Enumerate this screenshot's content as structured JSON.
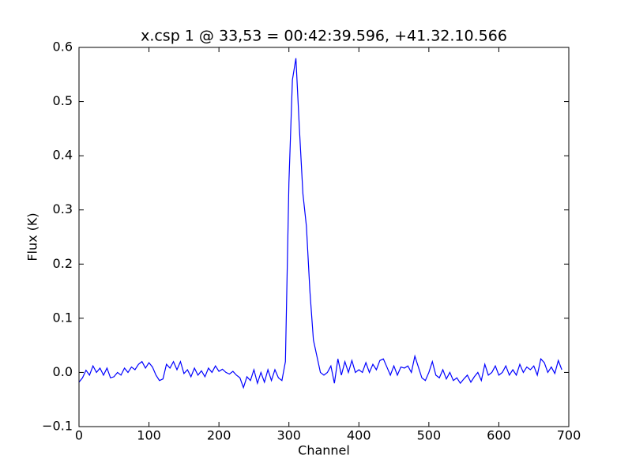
{
  "chart_data": {
    "type": "line",
    "title": "x.csp 1 @ 33,53 = 00:42:39.596, +41.32.10.566",
    "x_label": "Channel",
    "y_label": "Flux (K)",
    "xlim": [
      0,
      700
    ],
    "ylim": [
      -0.1,
      0.6
    ],
    "xticks": [
      0,
      100,
      200,
      300,
      400,
      500,
      600,
      700
    ],
    "yticks": [
      {
        "value": -0.1,
        "label": "−0.1"
      },
      {
        "value": 0,
        "label": "0.0"
      },
      0.1,
      0.2,
      0.3,
      0.4,
      0.5,
      0.6
    ],
    "series": [
      {
        "color": "#0000ff",
        "x": [
          0,
          5,
          10,
          15,
          20,
          25,
          30,
          35,
          40,
          45,
          50,
          55,
          60,
          65,
          70,
          75,
          80,
          85,
          90,
          95,
          100,
          105,
          110,
          115,
          120,
          125,
          130,
          135,
          140,
          145,
          150,
          155,
          160,
          165,
          170,
          175,
          180,
          185,
          190,
          195,
          200,
          205,
          210,
          215,
          220,
          225,
          230,
          235,
          240,
          245,
          250,
          255,
          260,
          265,
          270,
          275,
          280,
          285,
          290,
          295,
          300,
          305,
          310,
          315,
          320,
          325,
          330,
          335,
          340,
          345,
          350,
          355,
          360,
          365,
          370,
          375,
          380,
          385,
          390,
          395,
          400,
          405,
          410,
          415,
          420,
          425,
          430,
          435,
          440,
          445,
          450,
          455,
          460,
          465,
          470,
          475,
          480,
          485,
          490,
          495,
          500,
          505,
          510,
          515,
          520,
          525,
          530,
          535,
          540,
          545,
          550,
          555,
          560,
          565,
          570,
          575,
          580,
          585,
          590,
          595,
          600,
          605,
          610,
          615,
          620,
          625,
          630,
          635,
          640,
          645,
          650,
          655,
          660,
          665,
          670,
          675,
          680,
          685,
          690
        ],
        "values": [
          -0.018,
          -0.01,
          0.004,
          -0.005,
          0.012,
          0,
          0.008,
          -0.005,
          0.008,
          -0.01,
          -0.008,
          0,
          -0.005,
          0.008,
          0,
          0.01,
          0.005,
          0.015,
          0.02,
          0.008,
          0.018,
          0.01,
          -0.005,
          -0.015,
          -0.012,
          0.015,
          0.008,
          0.02,
          0.005,
          0.02,
          -0.002,
          0.005,
          -0.008,
          0.008,
          -0.005,
          0.003,
          -0.008,
          0.008,
          0,
          0.012,
          0.002,
          0.006,
          0,
          -0.003,
          0.002,
          -0.005,
          -0.01,
          -0.028,
          -0.008,
          -0.015,
          0.005,
          -0.02,
          0,
          -0.018,
          0.005,
          -0.015,
          0.005,
          -0.01,
          -0.015,
          0.02,
          0.35,
          0.54,
          0.58,
          0.45,
          0.33,
          0.27,
          0.15,
          0.06,
          0.03,
          0,
          -0.005,
          0,
          0.012,
          -0.02,
          0.025,
          -0.005,
          0.02,
          0,
          0.022,
          0,
          0.005,
          0,
          0.018,
          0,
          0.015,
          0.005,
          0.022,
          0.025,
          0.01,
          -0.005,
          0.012,
          -0.005,
          0.01,
          0.008,
          0.012,
          0,
          0.03,
          0.01,
          -0.01,
          -0.015,
          0,
          0.02,
          -0.005,
          -0.01,
          0.005,
          -0.012,
          0,
          -0.015,
          -0.01,
          -0.02,
          -0.012,
          -0.005,
          -0.018,
          -0.008,
          0,
          -0.015,
          0.015,
          -0.005,
          0,
          0.012,
          -0.005,
          0,
          0.012,
          -0.005,
          0.005,
          -0.005,
          0.015,
          0,
          0.01,
          0.005,
          0.012,
          -0.005,
          0.025,
          0.018,
          0,
          0.01,
          -0.002,
          0.022,
          0.005
        ]
      }
    ]
  }
}
